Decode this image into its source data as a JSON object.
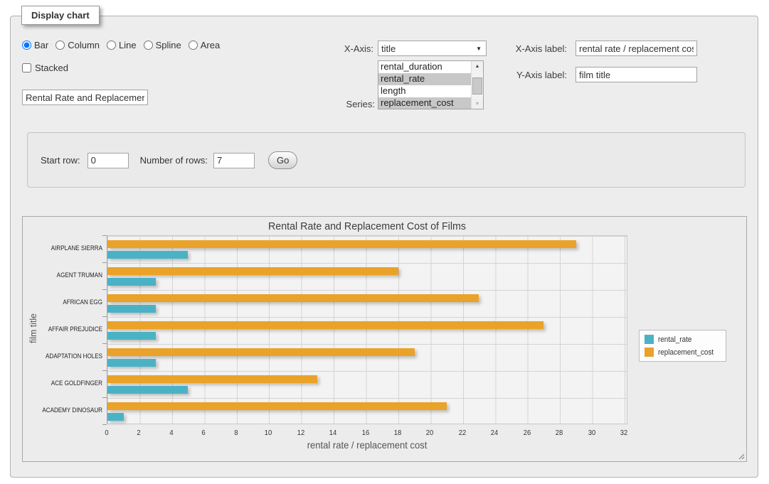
{
  "panel": {
    "legend": "Display chart"
  },
  "chart_types": [
    {
      "label": "Bar",
      "selected": true
    },
    {
      "label": "Column",
      "selected": false
    },
    {
      "label": "Line",
      "selected": false
    },
    {
      "label": "Spline",
      "selected": false
    },
    {
      "label": "Area",
      "selected": false
    }
  ],
  "stacked": {
    "label": "Stacked",
    "checked": false
  },
  "title_input": {
    "value": "Rental Rate and Replacement Cost of Films"
  },
  "x_axis_select": {
    "label": "X-Axis:",
    "value": "title"
  },
  "series_select": {
    "label": "Series:",
    "options": [
      {
        "label": "rental_duration",
        "selected": false
      },
      {
        "label": "rental_rate",
        "selected": true
      },
      {
        "label": "length",
        "selected": false
      },
      {
        "label": "replacement_cost",
        "selected": true
      }
    ]
  },
  "x_axis_label_field": {
    "label": "X-Axis label:",
    "value": "rental rate / replacement cost"
  },
  "y_axis_label_field": {
    "label": "Y-Axis label:",
    "value": "film title"
  },
  "row_controls": {
    "start_row_label": "Start row:",
    "start_row_value": "0",
    "num_rows_label": "Number of rows:",
    "num_rows_value": "7",
    "go_label": "Go"
  },
  "icons": {
    "dropdown_arrow": "▼",
    "scroll_up": "▲",
    "scroll_down": "▼"
  },
  "chart_data": {
    "type": "bar",
    "orientation": "horizontal",
    "title": "Rental Rate and Replacement Cost of Films",
    "xlabel": "rental rate / replacement cost",
    "ylabel": "film title",
    "categories": [
      "AIRPLANE SIERRA",
      "AGENT TRUMAN",
      "AFRICAN EGG",
      "AFFAIR PREJUDICE",
      "ADAPTATION HOLES",
      "ACE GOLDFINGER",
      "ACADEMY DINOSAUR"
    ],
    "series": [
      {
        "name": "rental_rate",
        "color": "#4bb2c5",
        "values": [
          4.99,
          2.99,
          2.99,
          2.99,
          2.99,
          4.99,
          0.99
        ]
      },
      {
        "name": "replacement_cost",
        "color": "#EAA228",
        "values": [
          28.99,
          17.99,
          22.99,
          26.99,
          18.99,
          12.99,
          20.99
        ]
      }
    ],
    "xlim": [
      0,
      32
    ],
    "xticks": [
      0,
      2,
      4,
      6,
      8,
      10,
      12,
      14,
      16,
      18,
      20,
      22,
      24,
      26,
      28,
      30,
      32
    ],
    "grid": true,
    "legend_position": "right-middle",
    "plot_background": "#f3f3f3",
    "gridline_color": "#d4d4d4"
  }
}
